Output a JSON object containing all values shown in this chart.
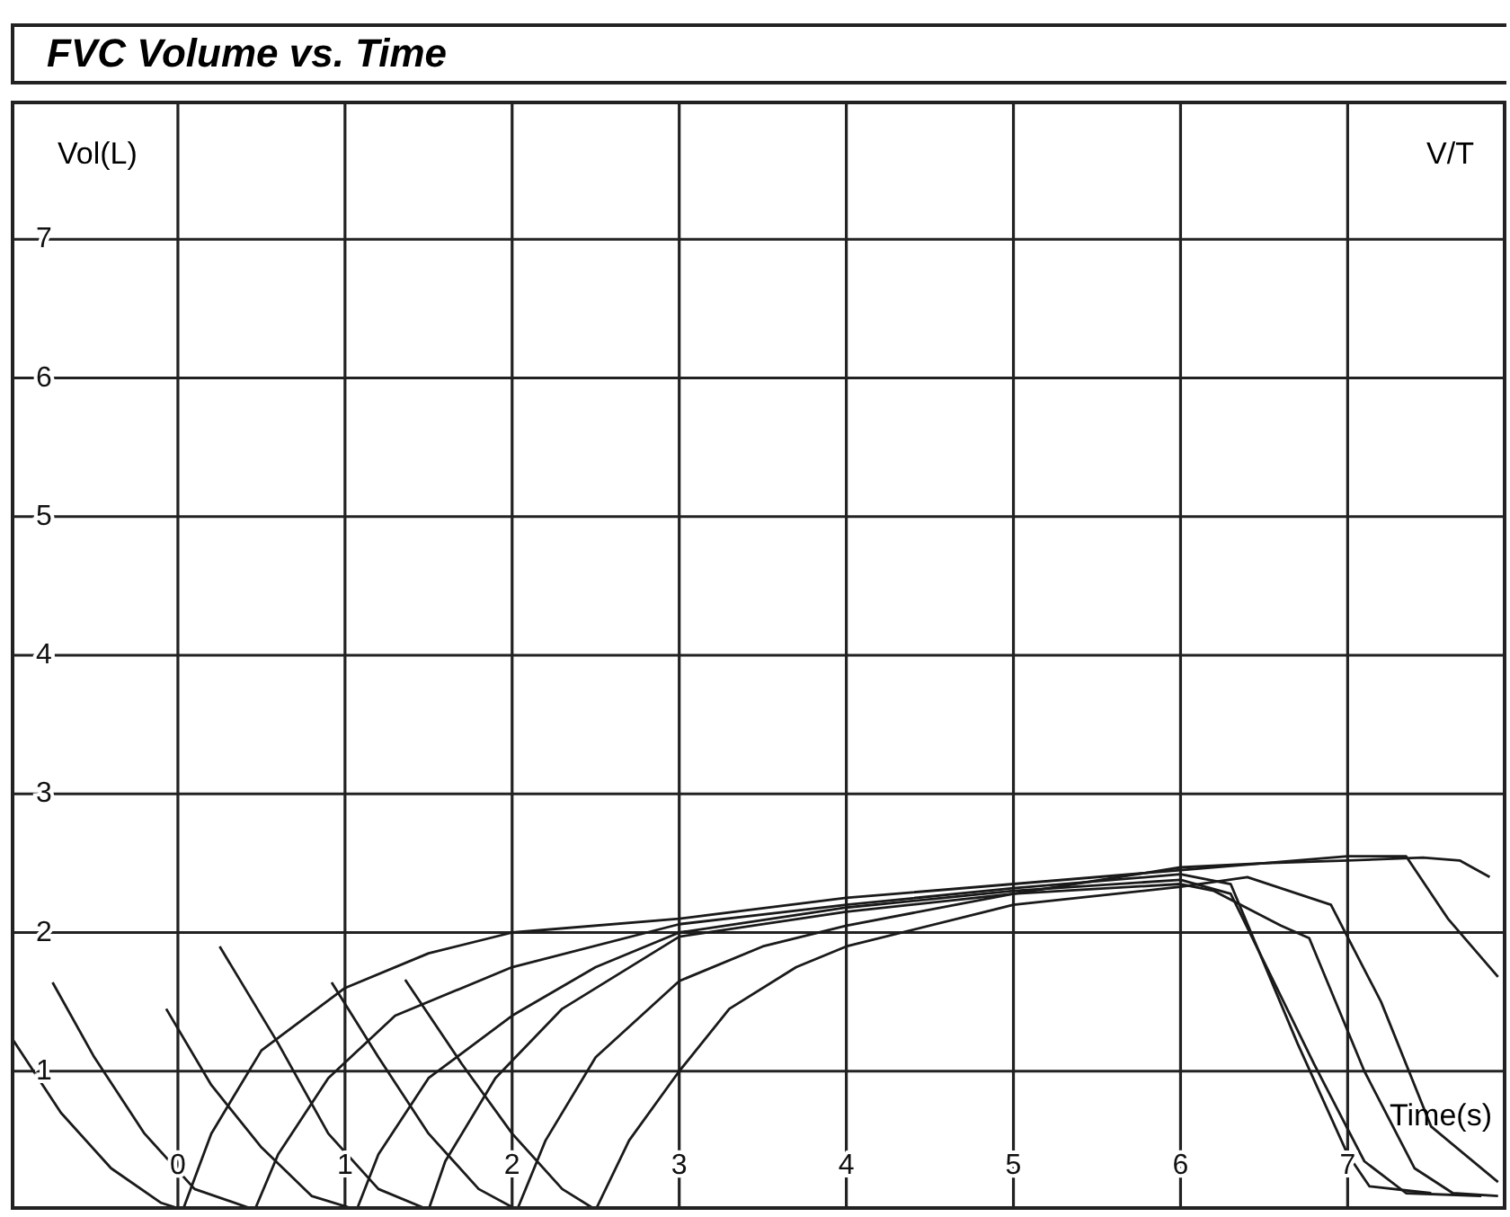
{
  "chart_data": {
    "type": "line",
    "title": "FVC Volume vs. Time",
    "xlabel": "Time(s)",
    "ylabel": "Vol(L)",
    "annotations": [
      "V/T"
    ],
    "xlim": [
      -1,
      7.95
    ],
    "xticks": [
      0,
      1,
      2,
      3,
      4,
      5,
      6,
      7
    ],
    "ylim": [
      0,
      8
    ],
    "yticks": [
      {
        "value": 0,
        "label": null
      },
      1,
      2,
      3,
      4,
      5,
      6,
      7,
      {
        "value": 8,
        "label": null
      }
    ],
    "grid": true,
    "line_style": "solid",
    "series": [
      {
        "color": "#1a1a1a",
        "x": [
          -1.0,
          -0.7,
          -0.4,
          -0.1,
          0.03,
          0.2,
          0.5,
          1,
          1.5,
          2,
          3,
          4,
          5,
          6,
          6.5,
          7,
          7.45,
          7.67,
          7.85
        ],
        "values": [
          1.25,
          0.7,
          0.3,
          0.05,
          0,
          0.55,
          1.15,
          1.6,
          1.85,
          2.0,
          2.1,
          2.25,
          2.35,
          2.45,
          2.5,
          2.52,
          2.54,
          2.52,
          2.4
        ]
      },
      {
        "color": "#1a1a1a",
        "x": [
          -0.75,
          -0.5,
          -0.2,
          0.1,
          0.46,
          0.6,
          0.9,
          1.3,
          2,
          3,
          4,
          5,
          6,
          6.3,
          6.7,
          7.0,
          7.13,
          7.5
        ],
        "values": [
          1.64,
          1.1,
          0.55,
          0.15,
          0,
          0.4,
          0.95,
          1.4,
          1.75,
          2.06,
          2.2,
          2.32,
          2.42,
          2.35,
          1.2,
          0.4,
          0.17,
          0.12
        ]
      },
      {
        "color": "#1a1a1a",
        "x": [
          -0.07,
          0.2,
          0.5,
          0.8,
          1.07,
          1.2,
          1.5,
          2,
          2.5,
          3,
          4,
          5,
          6,
          6.3,
          6.8,
          7.1,
          7.35,
          7.8
        ],
        "values": [
          1.45,
          0.9,
          0.45,
          0.1,
          0,
          0.4,
          0.95,
          1.4,
          1.75,
          2.0,
          2.18,
          2.3,
          2.38,
          2.28,
          1.05,
          0.35,
          0.12,
          0.1
        ]
      },
      {
        "color": "#1a1a1a",
        "x": [
          0.25,
          0.6,
          0.9,
          1.2,
          1.5,
          1.6,
          1.9,
          2.3,
          3,
          4,
          5,
          6,
          6.2,
          6.6,
          6.77,
          7.1,
          7.4,
          7.63,
          7.9
        ],
        "values": [
          1.9,
          1.2,
          0.55,
          0.15,
          0,
          0.35,
          0.95,
          1.45,
          1.97,
          2.15,
          2.28,
          2.35,
          2.3,
          2.05,
          1.96,
          1.0,
          0.3,
          0.12,
          0.1
        ]
      },
      {
        "color": "#1a1a1a",
        "x": [
          0.92,
          1.2,
          1.5,
          1.8,
          2.03,
          2.2,
          2.5,
          3,
          3.5,
          4,
          5,
          6,
          6.5,
          7,
          7.35,
          7.6,
          7.9
        ],
        "values": [
          1.64,
          1.1,
          0.55,
          0.15,
          0,
          0.5,
          1.1,
          1.65,
          1.9,
          2.05,
          2.28,
          2.47,
          2.5,
          2.55,
          2.55,
          2.1,
          1.68
        ]
      },
      {
        "color": "#1a1a1a",
        "x": [
          1.36,
          1.7,
          2.0,
          2.3,
          2.5,
          2.7,
          3,
          3.3,
          3.7,
          4,
          5,
          6,
          6.4,
          6.9,
          7.2,
          7.5,
          7.9
        ],
        "values": [
          1.66,
          1.05,
          0.55,
          0.15,
          0,
          0.5,
          1.0,
          1.45,
          1.75,
          1.9,
          2.2,
          2.33,
          2.4,
          2.2,
          1.5,
          0.6,
          0.2
        ]
      }
    ]
  }
}
